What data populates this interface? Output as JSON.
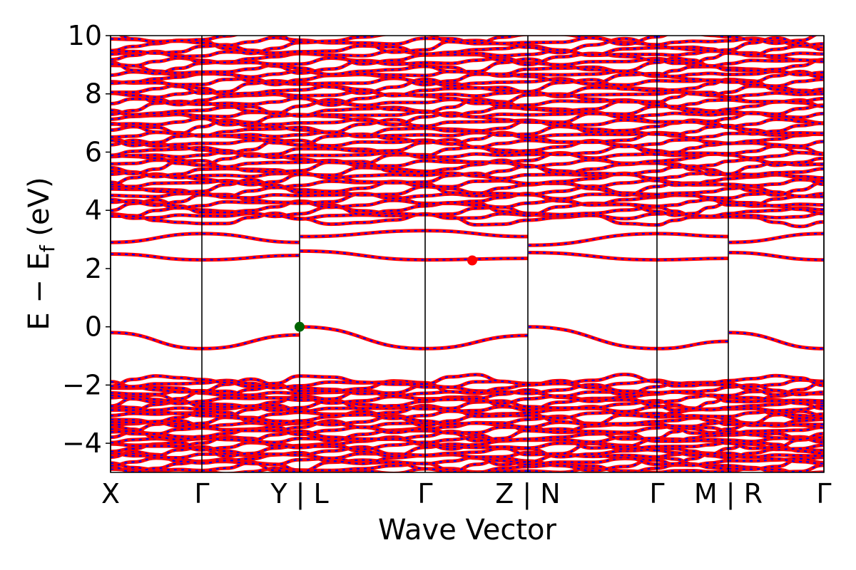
{
  "chart_data": {
    "type": "line",
    "xlabel": "Wave Vector",
    "ylabel_main": "E − E",
    "ylabel_sub": "f",
    "ylabel_unit": " (eV)",
    "ylim": [
      -5,
      10
    ],
    "yticks": [
      -4,
      -2,
      0,
      2,
      4,
      6,
      8,
      10
    ],
    "ytick_labels": [
      "−4",
      "−2",
      "0",
      "2",
      "4",
      "6",
      "8",
      "10"
    ],
    "xlim": [
      0,
      1
    ],
    "kpoints": [
      {
        "label": "X",
        "x": 0.0
      },
      {
        "label": "Γ",
        "x": 0.128
      },
      {
        "label": "Y | L",
        "x": 0.265
      },
      {
        "label": "Γ",
        "x": 0.441
      },
      {
        "label": "Z | N",
        "x": 0.585
      },
      {
        "label": "Γ",
        "x": 0.766
      },
      {
        "label": "M | R",
        "x": 0.866
      },
      {
        "label": "Γ",
        "x": 1.0
      }
    ],
    "series": [
      {
        "color": "#ff0000",
        "style": "solid"
      },
      {
        "color": "#0000ff",
        "style": "dashed"
      }
    ],
    "bands": [
      {
        "x": [
          0.0,
          0.128,
          0.265,
          0.266,
          0.441,
          0.585,
          0.586,
          0.766,
          0.866,
          0.867,
          1.0
        ],
        "y": [
          -0.2,
          -0.75,
          -0.28,
          0.0,
          -0.75,
          -0.3,
          0.0,
          -0.75,
          -0.5,
          -0.2,
          -0.75
        ]
      },
      {
        "x": [
          0.0,
          0.128,
          0.265,
          0.266,
          0.441,
          0.585,
          0.586,
          0.766,
          0.866,
          0.867,
          1.0
        ],
        "y": [
          2.5,
          2.3,
          2.45,
          2.6,
          2.3,
          2.35,
          2.55,
          2.3,
          2.35,
          2.55,
          2.3
        ]
      },
      {
        "x": [
          0.0,
          0.128,
          0.265,
          0.266,
          0.441,
          0.585,
          0.586,
          0.766,
          0.866,
          0.867,
          1.0
        ],
        "y": [
          2.9,
          3.2,
          2.9,
          3.1,
          3.3,
          3.1,
          2.8,
          3.2,
          3.1,
          2.9,
          3.2
        ]
      }
    ],
    "dense_regions": [
      {
        "ymin": -5.0,
        "ymax": -1.8,
        "count": 30
      },
      {
        "ymin": 3.6,
        "ymax": 10.0,
        "count": 46
      }
    ],
    "markers": [
      {
        "name": "vbm",
        "x": 0.265,
        "y": 0.0,
        "color": "#006400"
      },
      {
        "name": "cbm",
        "x": 0.507,
        "y": 2.28,
        "color": "#ff0000"
      }
    ]
  }
}
